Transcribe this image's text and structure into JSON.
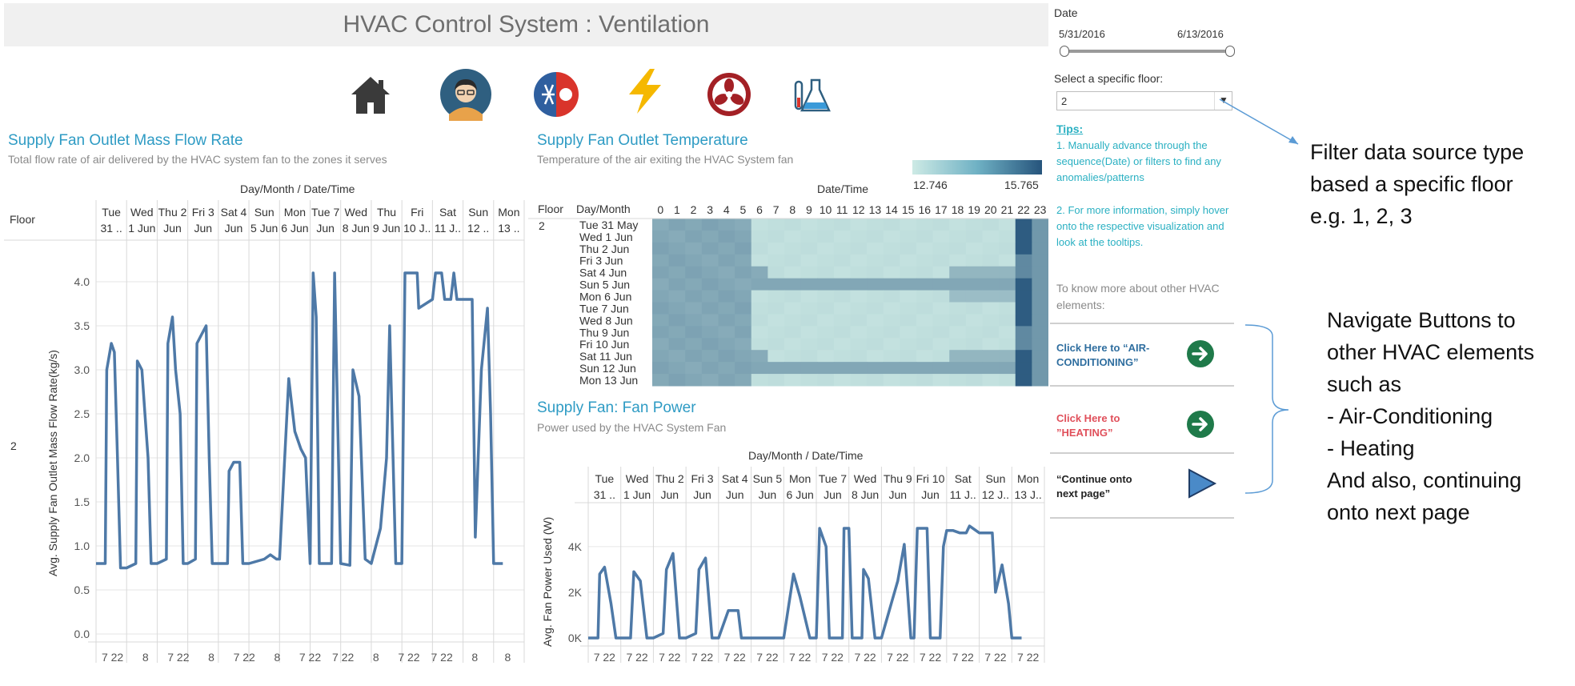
{
  "header": {
    "title": "HVAC Control System : Ventilation"
  },
  "nav_icons": [
    {
      "name": "home-icon"
    },
    {
      "name": "person-avatar-icon"
    },
    {
      "name": "hot-cold-icon"
    },
    {
      "name": "lightning-icon"
    },
    {
      "name": "fan-icon"
    },
    {
      "name": "lab-flask-icon"
    }
  ],
  "mass_flow": {
    "title": "Supply Fan Outlet Mass Flow Rate",
    "subtitle": "Total flow rate of air delivered by the HVAC system fan to the zones it serves",
    "header_title": "Day/Month / Date/Time",
    "floor_header": "Floor",
    "floor_value": "2",
    "ylabel": "Avg. Supply Fan Outlet Mass Flow Rate(kg/s)",
    "days": [
      [
        "Tue",
        "31 .."
      ],
      [
        "Wed",
        "1 Jun"
      ],
      [
        "Thu 2",
        "Jun"
      ],
      [
        "Fri 3",
        "Jun"
      ],
      [
        "Sat 4",
        "Jun"
      ],
      [
        "Sun",
        "5 Jun"
      ],
      [
        "Mon",
        "6 Jun"
      ],
      [
        "Tue 7",
        "Jun"
      ],
      [
        "Wed",
        "8 Jun"
      ],
      [
        "Thu",
        "9 Jun"
      ],
      [
        "Fri",
        "10 J.."
      ],
      [
        "Sat",
        "11 J.."
      ],
      [
        "Sun",
        "12 .."
      ],
      [
        "Mon",
        "13 .."
      ]
    ],
    "bottom_ticks": [
      "7 22",
      "8",
      "7 22",
      "8",
      "7 22",
      "8",
      "7 22",
      "7 22",
      "8",
      "7 22",
      "7 22",
      "8",
      "8"
    ]
  },
  "temperature": {
    "title": "Supply Fan Outlet Temperature",
    "subtitle": "Temperature of the air exiting the HVAC System fan",
    "legend_min": "12.746",
    "legend_max": "15.765",
    "header_title": "Date/Time",
    "floor_header": "Floor",
    "daymonth_header": "Day/Month",
    "floor_value": "2",
    "hours": [
      "0",
      "1",
      "2",
      "3",
      "4",
      "5",
      "6",
      "7",
      "8",
      "9",
      "10",
      "11",
      "12",
      "13",
      "14",
      "15",
      "16",
      "17",
      "18",
      "19",
      "20",
      "21",
      "22",
      "23"
    ],
    "rows": [
      "Tue 31 May",
      "Wed 1 Jun",
      "Thu 2 Jun",
      "Fri 3 Jun",
      "Sat 4 Jun",
      "Sun 5 Jun",
      "Mon 6 Jun",
      "Tue 7 Jun",
      "Wed 8 Jun",
      "Thu 9 Jun",
      "Fri 10 Jun",
      "Sat 11 Jun",
      "Sun 12 Jun",
      "Mon 13 Jun"
    ]
  },
  "fan_power": {
    "title": "Supply Fan: Fan Power",
    "subtitle": "Power used by the HVAC System Fan",
    "header_title": "Day/Month / Date/Time",
    "ylabel": "Avg. Fan Power Used (W)",
    "days": [
      [
        "Tue",
        "31 .."
      ],
      [
        "Wed",
        "1 Jun"
      ],
      [
        "Thu 2",
        "Jun"
      ],
      [
        "Fri 3",
        "Jun"
      ],
      [
        "Sat 4",
        "Jun"
      ],
      [
        "Sun 5",
        "Jun"
      ],
      [
        "Mon",
        "6 Jun"
      ],
      [
        "Tue 7",
        "Jun"
      ],
      [
        "Wed",
        "8 Jun"
      ],
      [
        "Thu 9",
        "Jun"
      ],
      [
        "Fri 10",
        "Jun"
      ],
      [
        "Sat",
        "11 J.."
      ],
      [
        "Sun",
        "12 J.."
      ],
      [
        "Mon",
        "13 J.."
      ]
    ],
    "bottom_ticks": [
      "7 22",
      "7 22",
      "7 22",
      "7 22",
      "7 22",
      "7 22",
      "7 22",
      "7 22",
      "7 22",
      "7 22",
      "7 22",
      "7 22",
      "7 22",
      "7 22"
    ]
  },
  "chart_data": [
    {
      "type": "line",
      "title": "Supply Fan Outlet Mass Flow Rate",
      "ylabel": "Avg. Supply Fan Outlet Mass Flow Rate(kg/s)",
      "ylim": [
        0,
        4.2
      ],
      "yticks": [
        "0.0",
        "0.5",
        "1.0",
        "1.5",
        "2.0",
        "2.5",
        "3.0",
        "3.5",
        "4.0"
      ],
      "days": 14,
      "series": [
        {
          "values": [
            [
              0.0,
              0.8
            ],
            [
              0.3,
              0.8
            ],
            [
              0.35,
              3.0
            ],
            [
              0.5,
              3.3
            ],
            [
              0.6,
              3.2
            ],
            [
              0.7,
              2.0
            ],
            [
              0.8,
              0.75
            ],
            [
              1.0,
              0.75
            ],
            [
              1.3,
              0.8
            ],
            [
              1.35,
              3.1
            ],
            [
              1.5,
              3.0
            ],
            [
              1.6,
              2.5
            ],
            [
              1.7,
              2.0
            ],
            [
              1.8,
              0.8
            ],
            [
              2.0,
              0.8
            ],
            [
              2.3,
              0.85
            ],
            [
              2.35,
              3.3
            ],
            [
              2.5,
              3.6
            ],
            [
              2.6,
              3.0
            ],
            [
              2.75,
              2.5
            ],
            [
              2.85,
              0.8
            ],
            [
              3.0,
              0.8
            ],
            [
              3.25,
              0.85
            ],
            [
              3.3,
              3.3
            ],
            [
              3.45,
              3.4
            ],
            [
              3.6,
              3.5
            ],
            [
              3.7,
              2.0
            ],
            [
              3.8,
              0.8
            ],
            [
              4.0,
              0.8
            ],
            [
              4.3,
              0.8
            ],
            [
              4.35,
              1.85
            ],
            [
              4.5,
              1.95
            ],
            [
              4.7,
              1.95
            ],
            [
              4.8,
              0.8
            ],
            [
              5.0,
              0.8
            ],
            [
              5.5,
              0.85
            ],
            [
              5.7,
              0.9
            ],
            [
              5.9,
              0.85
            ],
            [
              6.0,
              0.85
            ],
            [
              6.3,
              2.9
            ],
            [
              6.5,
              2.3
            ],
            [
              6.7,
              2.1
            ],
            [
              6.85,
              2.0
            ],
            [
              7.0,
              0.8
            ],
            [
              7.1,
              4.1
            ],
            [
              7.2,
              3.6
            ],
            [
              7.3,
              0.8
            ],
            [
              7.7,
              0.8
            ],
            [
              7.8,
              4.1
            ],
            [
              8.0,
              0.8
            ],
            [
              8.3,
              0.78
            ],
            [
              8.4,
              3.0
            ],
            [
              8.6,
              2.7
            ],
            [
              8.8,
              0.85
            ],
            [
              9.0,
              0.8
            ],
            [
              9.3,
              1.2
            ],
            [
              9.5,
              2.0
            ],
            [
              9.6,
              3.5
            ],
            [
              9.8,
              0.8
            ],
            [
              10.0,
              0.8
            ],
            [
              10.1,
              4.1
            ],
            [
              10.5,
              4.1
            ],
            [
              10.55,
              3.7
            ],
            [
              11.0,
              3.8
            ],
            [
              11.1,
              4.1
            ],
            [
              11.3,
              4.1
            ],
            [
              11.4,
              3.8
            ],
            [
              11.6,
              3.8
            ],
            [
              11.7,
              4.1
            ],
            [
              11.8,
              3.8
            ],
            [
              12.0,
              3.8
            ],
            [
              12.3,
              3.8
            ],
            [
              12.4,
              1.1
            ],
            [
              12.6,
              3.0
            ],
            [
              12.8,
              3.7
            ],
            [
              12.9,
              2.5
            ],
            [
              13.0,
              0.8
            ],
            [
              13.3,
              0.8
            ]
          ]
        }
      ]
    },
    {
      "type": "heatmap",
      "title": "Supply Fan Outlet Temperature",
      "x": [
        "0",
        "1",
        "2",
        "3",
        "4",
        "5",
        "6",
        "7",
        "8",
        "9",
        "10",
        "11",
        "12",
        "13",
        "14",
        "15",
        "16",
        "17",
        "18",
        "19",
        "20",
        "21",
        "22",
        "23"
      ],
      "y": [
        "Tue 31 May",
        "Wed 1 Jun",
        "Thu 2 Jun",
        "Fri 3 Jun",
        "Sat 4 Jun",
        "Sun 5 Jun",
        "Mon 6 Jun",
        "Tue 7 Jun",
        "Wed 8 Jun",
        "Thu 9 Jun",
        "Fri 10 Jun",
        "Sat 11 Jun",
        "Sun 12 Jun",
        "Mon 13 Jun"
      ],
      "range": [
        12.746,
        15.765
      ],
      "colors": {
        "low": "#cdeae5",
        "high": "#26547c"
      }
    },
    {
      "type": "line",
      "title": "Supply Fan: Fan Power",
      "ylabel": "Avg. Fan Power Used (W)",
      "ylim": [
        0,
        5500
      ],
      "yticks": [
        "0K",
        "2K",
        "4K"
      ],
      "days": 14,
      "series": [
        {
          "values": [
            [
              0.0,
              0
            ],
            [
              0.3,
              0
            ],
            [
              0.35,
              2800
            ],
            [
              0.5,
              3100
            ],
            [
              0.7,
              1500
            ],
            [
              0.85,
              0
            ],
            [
              1.0,
              0
            ],
            [
              1.3,
              0
            ],
            [
              1.4,
              2900
            ],
            [
              1.6,
              2500
            ],
            [
              1.8,
              0
            ],
            [
              2.0,
              0
            ],
            [
              2.3,
              200
            ],
            [
              2.4,
              3000
            ],
            [
              2.6,
              3700
            ],
            [
              2.8,
              0
            ],
            [
              3.0,
              0
            ],
            [
              3.3,
              200
            ],
            [
              3.4,
              3000
            ],
            [
              3.6,
              3500
            ],
            [
              3.8,
              0
            ],
            [
              4.0,
              0
            ],
            [
              4.3,
              1200
            ],
            [
              4.6,
              1200
            ],
            [
              4.7,
              0
            ],
            [
              5.0,
              0
            ],
            [
              5.5,
              0
            ],
            [
              6.0,
              0
            ],
            [
              6.3,
              2800
            ],
            [
              6.5,
              1800
            ],
            [
              6.8,
              0
            ],
            [
              7.0,
              0
            ],
            [
              7.1,
              4800
            ],
            [
              7.3,
              4000
            ],
            [
              7.4,
              0
            ],
            [
              7.8,
              0
            ],
            [
              7.85,
              4800
            ],
            [
              8.0,
              4800
            ],
            [
              8.1,
              0
            ],
            [
              8.4,
              0
            ],
            [
              8.45,
              3000
            ],
            [
              8.6,
              2600
            ],
            [
              8.8,
              0
            ],
            [
              9.0,
              0
            ],
            [
              9.3,
              1500
            ],
            [
              9.5,
              2500
            ],
            [
              9.7,
              4100
            ],
            [
              9.9,
              0
            ],
            [
              10.0,
              0
            ],
            [
              10.1,
              4800
            ],
            [
              10.4,
              4800
            ],
            [
              10.5,
              0
            ],
            [
              10.8,
              0
            ],
            [
              10.9,
              4000
            ],
            [
              11.0,
              4700
            ],
            [
              11.2,
              4700
            ],
            [
              11.4,
              4600
            ],
            [
              11.6,
              4600
            ],
            [
              11.7,
              4900
            ],
            [
              12.0,
              4600
            ],
            [
              12.4,
              4600
            ],
            [
              12.5,
              2000
            ],
            [
              12.7,
              3200
            ],
            [
              12.9,
              1500
            ],
            [
              13.0,
              0
            ],
            [
              13.3,
              0
            ]
          ]
        }
      ]
    }
  ],
  "right_panel": {
    "date_label": "Date",
    "date_start": "5/31/2016",
    "date_end": "6/13/2016",
    "floor_label": "Select a specific floor:",
    "floor_value": "2",
    "tips_heading": "Tips:",
    "tips": [
      "1. Manually advance through the sequence(Date) or filters to find any anomalies/patterns",
      "2. For more information, simply hover onto the respective visualization and look at the tooltips."
    ],
    "more_text": "To know more about other HVAC elements:",
    "buttons": [
      {
        "label_line1": "Click Here to “AIR-",
        "label_line2": "CONDITIONING”",
        "color": "#2f6e9f"
      },
      {
        "label_line1": "Click Here to",
        "label_line2": "”HEATING”",
        "color": "#e0505b"
      },
      {
        "label_line1": "“Continue onto",
        "label_line2": "next page”",
        "color": "#222222"
      }
    ]
  },
  "annotations": {
    "filter_note": [
      "Filter data source type",
      "based a specific floor",
      "e.g. 1, 2, 3"
    ],
    "nav_note": [
      "Navigate Buttons to",
      "other HVAC elements",
      "such as",
      "-     Air-Conditioning",
      "-     Heating",
      "And also, continuing",
      "onto next page"
    ]
  }
}
